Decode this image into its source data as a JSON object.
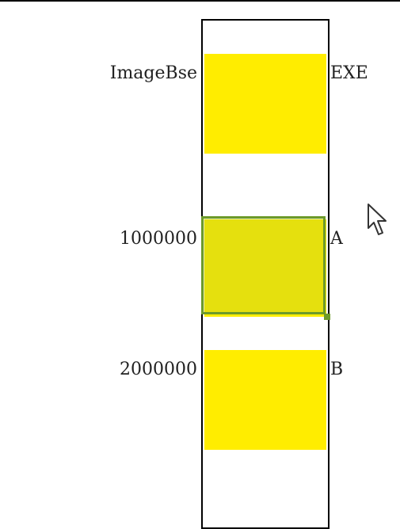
{
  "labels": {
    "image_base": "ImageBse",
    "exe": "EXE",
    "address_a": "1000000",
    "module_a": "A",
    "address_b": "2000000",
    "module_b": "B"
  },
  "colors": {
    "block_fill": "#ffed00",
    "selection_border": "#6c9a2a",
    "column_border": "#000000"
  },
  "icons": {
    "cursor": "mouse-pointer-icon"
  }
}
